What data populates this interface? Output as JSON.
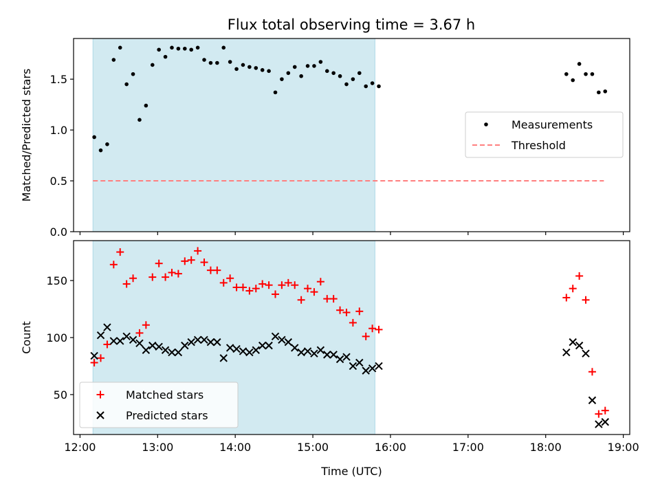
{
  "title": "Flux total observing time = 3.67 h",
  "chart_data": [
    {
      "type": "scatter",
      "name": "ratio-panel",
      "ylabel": "Matched/Predicted stars",
      "xlabel": "",
      "xlim": [
        "11:55",
        "19:05"
      ],
      "ylim": [
        0,
        1.9
      ],
      "yticks": [
        0.0,
        0.5,
        1.0,
        1.5
      ],
      "ytick_labels": [
        "0.0",
        "0.5",
        "1.0",
        "1.5"
      ],
      "grid": false,
      "legend_position": "center-right",
      "shaded_interval": [
        "12:10",
        "15:48"
      ],
      "threshold": {
        "name": "Threshold",
        "value": 0.5,
        "x_from": "12:10",
        "x_to": "18:45",
        "color": "#ff7f7f",
        "style": "dashed"
      },
      "series": [
        {
          "name": "Measurements",
          "color": "#000000",
          "marker": "dot",
          "points": [
            [
              "12:11",
              0.93
            ],
            [
              "12:16",
              0.8
            ],
            [
              "12:21",
              0.86
            ],
            [
              "12:26",
              1.69
            ],
            [
              "12:31",
              1.81
            ],
            [
              "12:36",
              1.45
            ],
            [
              "12:41",
              1.55
            ],
            [
              "12:46",
              1.1
            ],
            [
              "12:51",
              1.24
            ],
            [
              "12:56",
              1.64
            ],
            [
              "13:01",
              1.79
            ],
            [
              "13:06",
              1.72
            ],
            [
              "13:11",
              1.81
            ],
            [
              "13:16",
              1.8
            ],
            [
              "13:21",
              1.8
            ],
            [
              "13:26",
              1.79
            ],
            [
              "13:31",
              1.81
            ],
            [
              "13:36",
              1.69
            ],
            [
              "13:41",
              1.66
            ],
            [
              "13:46",
              1.66
            ],
            [
              "13:51",
              1.81
            ],
            [
              "13:56",
              1.67
            ],
            [
              "14:01",
              1.6
            ],
            [
              "14:06",
              1.64
            ],
            [
              "14:11",
              1.62
            ],
            [
              "14:16",
              1.61
            ],
            [
              "14:21",
              1.59
            ],
            [
              "14:26",
              1.58
            ],
            [
              "14:31",
              1.37
            ],
            [
              "14:36",
              1.5
            ],
            [
              "14:41",
              1.56
            ],
            [
              "14:46",
              1.62
            ],
            [
              "14:51",
              1.53
            ],
            [
              "14:56",
              1.63
            ],
            [
              "15:01",
              1.63
            ],
            [
              "15:06",
              1.67
            ],
            [
              "15:11",
              1.58
            ],
            [
              "15:16",
              1.56
            ],
            [
              "15:21",
              1.53
            ],
            [
              "15:26",
              1.45
            ],
            [
              "15:31",
              1.5
            ],
            [
              "15:36",
              1.56
            ],
            [
              "15:41",
              1.43
            ],
            [
              "15:46",
              1.46
            ],
            [
              "15:51",
              1.43
            ],
            [
              "18:16",
              1.55
            ],
            [
              "18:21",
              1.49
            ],
            [
              "18:26",
              1.65
            ],
            [
              "18:31",
              1.55
            ],
            [
              "18:36",
              1.55
            ],
            [
              "18:41",
              1.37
            ],
            [
              "18:46",
              1.38
            ]
          ]
        }
      ]
    },
    {
      "type": "scatter",
      "name": "count-panel",
      "ylabel": "Count",
      "xlabel": "Time (UTC)",
      "xlim": [
        "11:55",
        "19:05"
      ],
      "ylim": [
        15,
        185
      ],
      "xticks": [
        "12:00",
        "13:00",
        "14:00",
        "15:00",
        "16:00",
        "17:00",
        "18:00",
        "19:00"
      ],
      "yticks": [
        50,
        100,
        150
      ],
      "ytick_labels": [
        "50",
        "100",
        "150"
      ],
      "grid": false,
      "legend_position": "lower-left",
      "shaded_interval": [
        "12:10",
        "15:48"
      ],
      "series": [
        {
          "name": "Matched stars",
          "color": "#ff0000",
          "marker": "plus",
          "points": [
            [
              "12:11",
              78
            ],
            [
              "12:16",
              82
            ],
            [
              "12:21",
              94
            ],
            [
              "12:26",
              164
            ],
            [
              "12:31",
              175
            ],
            [
              "12:36",
              147
            ],
            [
              "12:41",
              152
            ],
            [
              "12:46",
              104
            ],
            [
              "12:51",
              111
            ],
            [
              "12:56",
              153
            ],
            [
              "13:01",
              165
            ],
            [
              "13:06",
              153
            ],
            [
              "13:11",
              157
            ],
            [
              "13:16",
              156
            ],
            [
              "13:21",
              167
            ],
            [
              "13:26",
              168
            ],
            [
              "13:31",
              176
            ],
            [
              "13:36",
              166
            ],
            [
              "13:41",
              159
            ],
            [
              "13:46",
              159
            ],
            [
              "13:51",
              148
            ],
            [
              "13:56",
              152
            ],
            [
              "14:01",
              144
            ],
            [
              "14:06",
              144
            ],
            [
              "14:11",
              141
            ],
            [
              "14:16",
              143
            ],
            [
              "14:21",
              147
            ],
            [
              "14:26",
              146
            ],
            [
              "14:31",
              138
            ],
            [
              "14:36",
              146
            ],
            [
              "14:41",
              148
            ],
            [
              "14:46",
              146
            ],
            [
              "14:51",
              133
            ],
            [
              "14:56",
              143
            ],
            [
              "15:01",
              140
            ],
            [
              "15:06",
              149
            ],
            [
              "15:11",
              134
            ],
            [
              "15:16",
              134
            ],
            [
              "15:21",
              124
            ],
            [
              "15:26",
              122
            ],
            [
              "15:31",
              113
            ],
            [
              "15:36",
              123
            ],
            [
              "15:41",
              101
            ],
            [
              "15:46",
              108
            ],
            [
              "15:51",
              107
            ],
            [
              "18:16",
              135
            ],
            [
              "18:21",
              143
            ],
            [
              "18:26",
              154
            ],
            [
              "18:31",
              133
            ],
            [
              "18:36",
              70
            ],
            [
              "18:41",
              33
            ],
            [
              "18:46",
              36
            ]
          ]
        },
        {
          "name": "Predicted stars",
          "color": "#000000",
          "marker": "x",
          "points": [
            [
              "12:11",
              84
            ],
            [
              "12:16",
              102
            ],
            [
              "12:21",
              109
            ],
            [
              "12:26",
              97
            ],
            [
              "12:31",
              97
            ],
            [
              "12:36",
              101
            ],
            [
              "12:41",
              98
            ],
            [
              "12:46",
              95
            ],
            [
              "12:51",
              89
            ],
            [
              "12:56",
              93
            ],
            [
              "13:01",
              92
            ],
            [
              "13:06",
              89
            ],
            [
              "13:11",
              87
            ],
            [
              "13:16",
              87
            ],
            [
              "13:21",
              93
            ],
            [
              "13:26",
              96
            ],
            [
              "13:31",
              98
            ],
            [
              "13:36",
              98
            ],
            [
              "13:41",
              96
            ],
            [
              "13:46",
              96
            ],
            [
              "13:51",
              82
            ],
            [
              "13:56",
              91
            ],
            [
              "14:01",
              90
            ],
            [
              "14:06",
              88
            ],
            [
              "14:11",
              87
            ],
            [
              "14:16",
              89
            ],
            [
              "14:21",
              93
            ],
            [
              "14:26",
              93
            ],
            [
              "14:31",
              101
            ],
            [
              "14:36",
              98
            ],
            [
              "14:41",
              96
            ],
            [
              "14:46",
              91
            ],
            [
              "14:51",
              87
            ],
            [
              "14:56",
              88
            ],
            [
              "15:01",
              86
            ],
            [
              "15:06",
              89
            ],
            [
              "15:11",
              85
            ],
            [
              "15:16",
              85
            ],
            [
              "15:21",
              81
            ],
            [
              "15:26",
              83
            ],
            [
              "15:31",
              75
            ],
            [
              "15:36",
              78
            ],
            [
              "15:41",
              71
            ],
            [
              "15:46",
              73
            ],
            [
              "15:51",
              75
            ],
            [
              "18:16",
              87
            ],
            [
              "18:21",
              96
            ],
            [
              "18:26",
              93
            ],
            [
              "18:31",
              86
            ],
            [
              "18:36",
              45
            ],
            [
              "18:41",
              24
            ],
            [
              "18:46",
              26
            ]
          ]
        }
      ]
    }
  ],
  "colors": {
    "shade": "#add8e6",
    "axes": "#000000",
    "threshold": "#ff7f7f"
  }
}
